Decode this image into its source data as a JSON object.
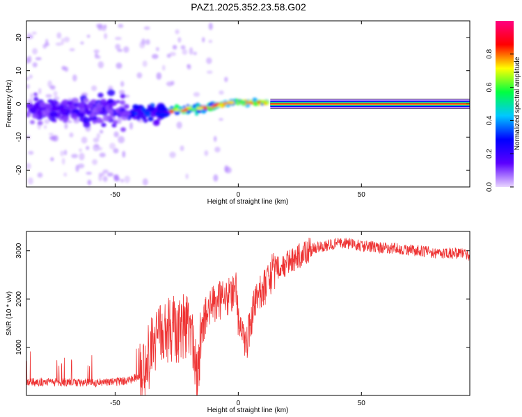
{
  "title": "PAZ1.2025.352.23.58.G02",
  "chart_data": [
    {
      "type": "heatmap",
      "name": "spectrogram",
      "xlabel": "Height of straight line (km)",
      "ylabel": "Frequency (Hz)",
      "xlim": [
        -86,
        94
      ],
      "ylim": [
        -25,
        25
      ],
      "xticks": [
        -50,
        0,
        50
      ],
      "yticks": [
        -20,
        -10,
        0,
        10,
        20
      ],
      "ridge": {
        "x": [
          -86,
          -70,
          -55,
          -45,
          -40,
          -35,
          -30,
          -25,
          -20,
          -15,
          -10,
          -5,
          0,
          5,
          10,
          13,
          94
        ],
        "freq": [
          -2,
          -2,
          -1.5,
          -2.5,
          -3.5,
          -3,
          -2.5,
          -2,
          -1.5,
          -1.5,
          -0.8,
          0.2,
          0.8,
          0.3,
          0.5,
          0,
          0
        ]
      },
      "colorbar": {
        "label": "Normalized spectral amplitude",
        "range": [
          0,
          1
        ],
        "ticks": [
          "0.0",
          "0.2",
          "0.4",
          "0.6",
          "0.8"
        ],
        "colors": [
          "#e9d5ff",
          "#5b00ff",
          "#0000ff",
          "#00c8ff",
          "#00ff40",
          "#ffff00",
          "#ff0000",
          "#ff0080"
        ]
      }
    },
    {
      "type": "line",
      "name": "snr",
      "xlabel": "Height of straight line (km)",
      "ylabel": "SNR (10 * v/v)",
      "xlim": [
        -86,
        94
      ],
      "ylim": [
        0,
        3400
      ],
      "xticks": [
        -50,
        0,
        50
      ],
      "yticks": [
        1000,
        2000,
        3000
      ],
      "color": "#ee3333",
      "x": [
        -86,
        -80,
        -70,
        -60,
        -50,
        -45,
        -40,
        -37,
        -35,
        -32,
        -30,
        -27,
        -25,
        -22,
        -20,
        -18,
        -17,
        -15,
        -13,
        -10,
        -8,
        -5,
        -3,
        -1,
        0,
        2,
        3,
        5,
        7,
        10,
        12,
        15,
        20,
        25,
        30,
        35,
        40,
        45,
        50,
        55,
        60,
        65,
        70,
        75,
        80,
        85,
        90,
        94
      ],
      "values": [
        260,
        280,
        270,
        260,
        280,
        300,
        400,
        700,
        1000,
        1200,
        1300,
        1400,
        1350,
        1450,
        1500,
        1100,
        200,
        1300,
        1700,
        1900,
        1950,
        2000,
        2100,
        2300,
        1600,
        1200,
        900,
        1500,
        1900,
        2200,
        2400,
        2600,
        2750,
        2900,
        3050,
        3100,
        3150,
        3150,
        3100,
        3080,
        3050,
        3050,
        3000,
        3000,
        2950,
        2950,
        2950,
        2900
      ]
    }
  ]
}
